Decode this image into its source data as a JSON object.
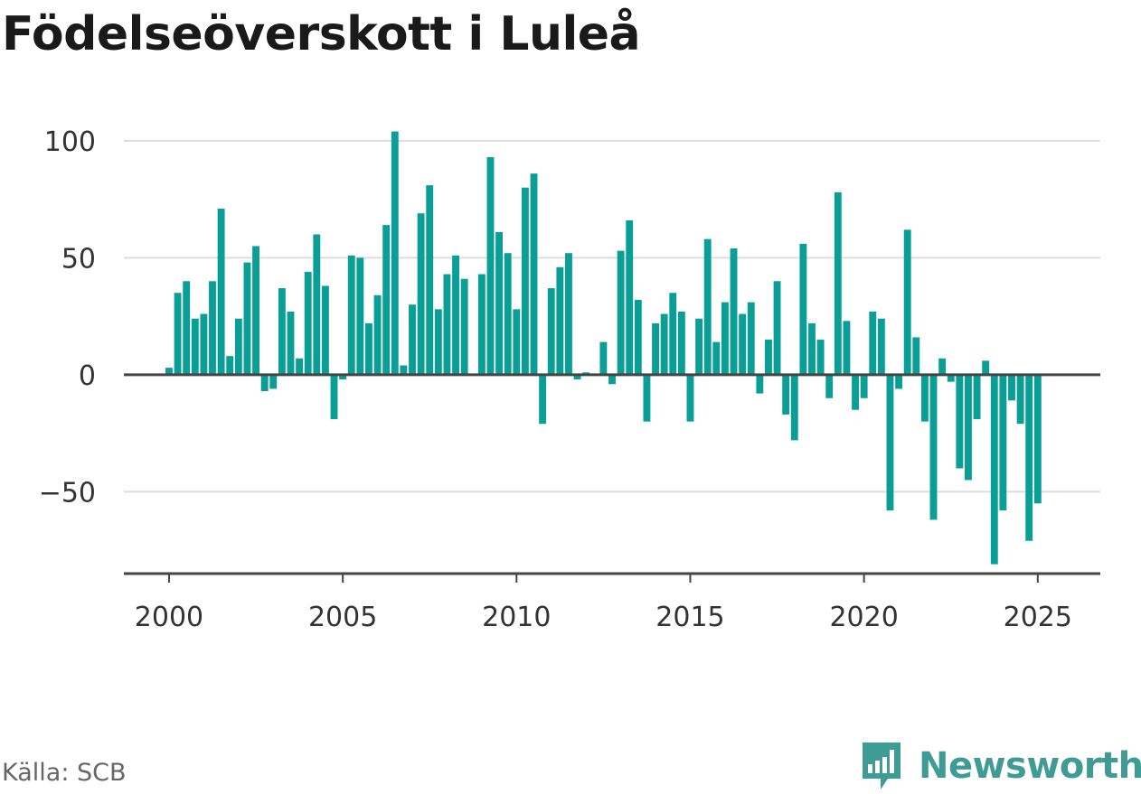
{
  "title": "Födelseöverskott i Luleå",
  "source": "Källa: SCB",
  "brand": {
    "name": "Newsworthy",
    "color": "#3f9c94",
    "icon": "bar-chart-speech-bubble-icon"
  },
  "chart_data": {
    "type": "bar",
    "title": "Födelseöverskott i Luleå",
    "xlabel": "",
    "ylabel": "",
    "ylim": [
      -85,
      110
    ],
    "yticks": [
      100,
      50,
      0,
      -50
    ],
    "ytick_labels": [
      "100",
      "50",
      "0",
      "−50"
    ],
    "xticks": [
      2000,
      2005,
      2010,
      2015,
      2020,
      2025
    ],
    "xtick_labels": [
      "2000",
      "2005",
      "2010",
      "2015",
      "2020",
      "2025"
    ],
    "xlim": [
      1998.7,
      2026.8
    ],
    "grid": true,
    "legend": "none",
    "bar_color": "#0a9f96",
    "x": [
      2000.0,
      2000.25,
      2000.5,
      2000.75,
      2001.0,
      2001.25,
      2001.5,
      2001.75,
      2002.0,
      2002.25,
      2002.5,
      2002.75,
      2003.0,
      2003.25,
      2003.5,
      2003.75,
      2004.0,
      2004.25,
      2004.5,
      2004.75,
      2005.0,
      2005.25,
      2005.5,
      2005.75,
      2006.0,
      2006.25,
      2006.5,
      2006.75,
      2007.0,
      2007.25,
      2007.5,
      2007.75,
      2008.0,
      2008.25,
      2008.5,
      2008.75,
      2009.0,
      2009.25,
      2009.5,
      2009.75,
      2010.0,
      2010.25,
      2010.5,
      2010.75,
      2011.0,
      2011.25,
      2011.5,
      2011.75,
      2012.0,
      2012.25,
      2012.5,
      2012.75,
      2013.0,
      2013.25,
      2013.5,
      2013.75,
      2014.0,
      2014.25,
      2014.5,
      2014.75,
      2015.0,
      2015.25,
      2015.5,
      2015.75,
      2016.0,
      2016.25,
      2016.5,
      2016.75,
      2017.0,
      2017.25,
      2017.5,
      2017.75,
      2018.0,
      2018.25,
      2018.5,
      2018.75,
      2019.0,
      2019.25,
      2019.5,
      2019.75,
      2020.0,
      2020.25,
      2020.5,
      2020.75,
      2021.0,
      2021.25,
      2021.5,
      2021.75,
      2022.0,
      2022.25,
      2022.5,
      2022.75,
      2023.0,
      2023.25,
      2023.5,
      2023.75,
      2024.0,
      2024.25,
      2024.5,
      2024.75,
      2025.0
    ],
    "values": [
      3,
      35,
      40,
      24,
      26,
      40,
      71,
      8,
      24,
      48,
      55,
      -7,
      -6,
      37,
      27,
      7,
      44,
      60,
      38,
      -19,
      -2,
      51,
      50,
      22,
      34,
      64,
      104,
      4,
      30,
      69,
      81,
      28,
      43,
      51,
      41,
      0,
      43,
      93,
      61,
      52,
      28,
      80,
      86,
      -21,
      37,
      46,
      52,
      -2,
      1,
      0,
      14,
      -4,
      53,
      66,
      32,
      -20,
      22,
      26,
      35,
      27,
      -20,
      24,
      58,
      14,
      31,
      54,
      26,
      31,
      -8,
      15,
      40,
      -17,
      -28,
      56,
      22,
      15,
      -10,
      78,
      23,
      -15,
      -10,
      27,
      24,
      -58,
      -6,
      62,
      16,
      -20,
      -62,
      7,
      -3,
      -40,
      -45,
      -19,
      6,
      -81,
      -58,
      -11,
      -21,
      -71,
      -55
    ]
  }
}
